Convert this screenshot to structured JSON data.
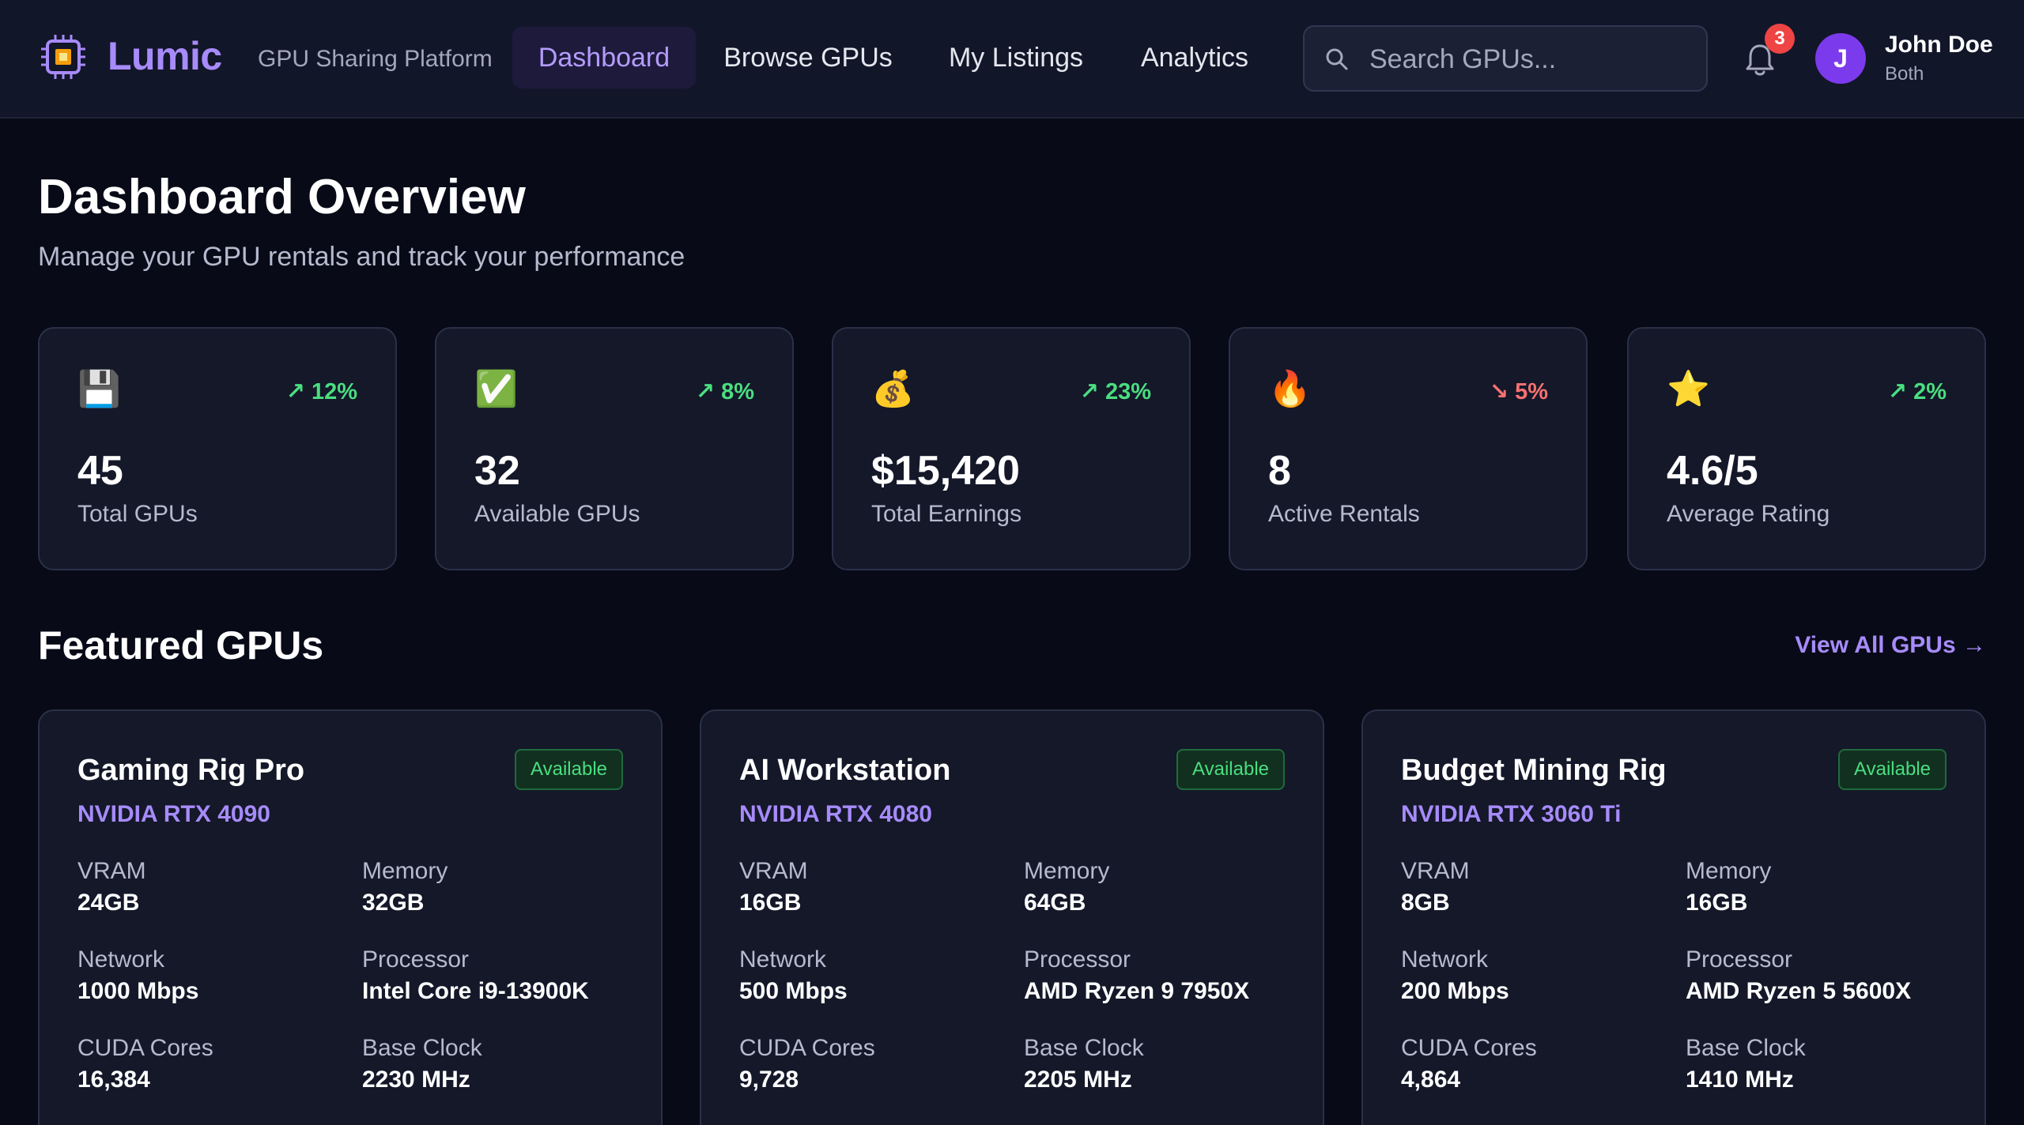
{
  "header": {
    "brand": "Lumic",
    "tagline": "GPU Sharing Platform",
    "nav": [
      {
        "label": "Dashboard",
        "active": true
      },
      {
        "label": "Browse GPUs",
        "active": false
      },
      {
        "label": "My Listings",
        "active": false
      },
      {
        "label": "Analytics",
        "active": false
      }
    ],
    "search_placeholder": "Search GPUs...",
    "notifications_count": "3",
    "user": {
      "initial": "J",
      "name": "John Doe",
      "role": "Both"
    }
  },
  "page": {
    "title": "Dashboard Overview",
    "subtitle": "Manage your GPU rentals and track your performance"
  },
  "stats": [
    {
      "icon": "floppy-disk-icon",
      "emoji": "💾",
      "trend": "↗ 12%",
      "direction": "up",
      "value": "45",
      "label": "Total GPUs"
    },
    {
      "icon": "check-mark-icon",
      "emoji": "✅",
      "trend": "↗ 8%",
      "direction": "up",
      "value": "32",
      "label": "Available GPUs"
    },
    {
      "icon": "money-bag-icon",
      "emoji": "💰",
      "trend": "↗ 23%",
      "direction": "up",
      "value": "$15,420",
      "label": "Total Earnings"
    },
    {
      "icon": "fire-icon",
      "emoji": "🔥",
      "trend": "↘ 5%",
      "direction": "down",
      "value": "8",
      "label": "Active Rentals"
    },
    {
      "icon": "star-icon",
      "emoji": "⭐",
      "trend": "↗ 2%",
      "direction": "up",
      "value": "4.6/5",
      "label": "Average Rating"
    }
  ],
  "featured": {
    "title": "Featured GPUs",
    "view_all": "View All GPUs →",
    "gpus": [
      {
        "name": "Gaming Rig Pro",
        "model": "NVIDIA RTX 4090",
        "status": "Available",
        "specs": {
          "vram_label": "VRAM",
          "vram": "24GB",
          "memory_label": "Memory",
          "memory": "32GB",
          "network_label": "Network",
          "network": "1000 Mbps",
          "processor_label": "Processor",
          "processor": "Intel Core i9-13900K",
          "cuda_label": "CUDA Cores",
          "cuda": "16,384",
          "clock_label": "Base Clock",
          "clock": "2230 MHz"
        }
      },
      {
        "name": "AI Workstation",
        "model": "NVIDIA RTX 4080",
        "status": "Available",
        "specs": {
          "vram_label": "VRAM",
          "vram": "16GB",
          "memory_label": "Memory",
          "memory": "64GB",
          "network_label": "Network",
          "network": "500 Mbps",
          "processor_label": "Processor",
          "processor": "AMD Ryzen 9 7950X",
          "cuda_label": "CUDA Cores",
          "cuda": "9,728",
          "clock_label": "Base Clock",
          "clock": "2205 MHz"
        }
      },
      {
        "name": "Budget Mining Rig",
        "model": "NVIDIA RTX 3060 Ti",
        "status": "Available",
        "specs": {
          "vram_label": "VRAM",
          "vram": "8GB",
          "memory_label": "Memory",
          "memory": "16GB",
          "network_label": "Network",
          "network": "200 Mbps",
          "processor_label": "Processor",
          "processor": "AMD Ryzen 5 5600X",
          "cuda_label": "CUDA Cores",
          "cuda": "4,864",
          "clock_label": "Base Clock",
          "clock": "1410 MHz"
        }
      }
    ]
  }
}
